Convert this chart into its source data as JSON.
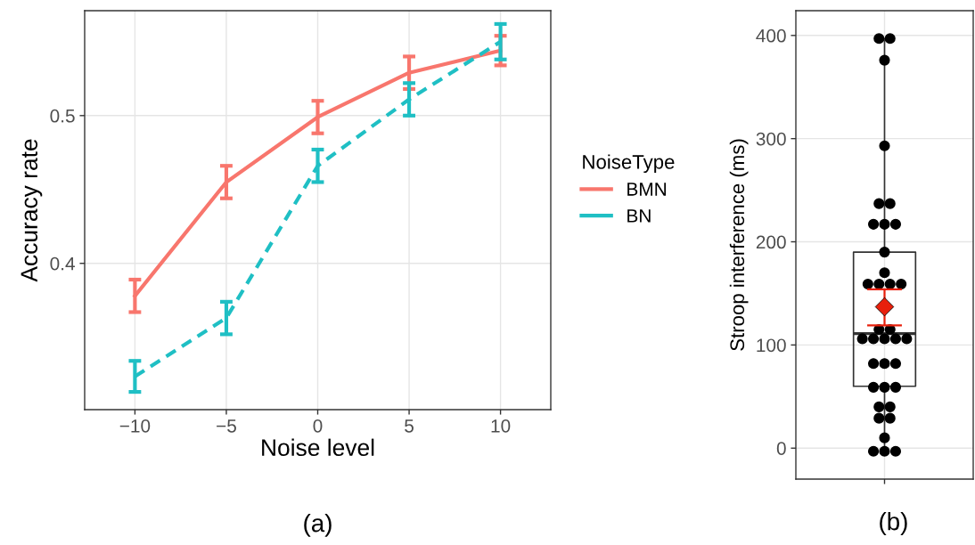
{
  "chart_data": [
    {
      "type": "line",
      "xlabel": "Noise level",
      "ylabel": "Accuracy rate",
      "legend_title": "NoiseType",
      "x": [
        -10,
        -5,
        0,
        5,
        10
      ],
      "series": [
        {
          "name": "BMN",
          "color": "#f8766d",
          "line_style": "solid",
          "values": [
            0.378,
            0.455,
            0.499,
            0.529,
            0.544
          ],
          "errors": [
            0.011,
            0.011,
            0.011,
            0.011,
            0.01
          ]
        },
        {
          "name": "BN",
          "color": "#1fbfc4",
          "line_style": "dashed",
          "values": [
            0.3235,
            0.363,
            0.466,
            0.511,
            0.55
          ],
          "errors": [
            0.0105,
            0.011,
            0.011,
            0.011,
            0.012
          ]
        }
      ],
      "xlim": [
        -12.75,
        12.75
      ],
      "xticks": [
        {
          "value": -10,
          "label": "−10"
        },
        {
          "value": -5,
          "label": "−5"
        },
        0,
        5,
        10
      ],
      "ylim": [
        0.301,
        0.571
      ],
      "yticks": [
        0.4,
        0.5
      ],
      "grid": true,
      "legend": "right",
      "marker": "none",
      "annotations": [
        {
          "text": "(a)"
        }
      ]
    },
    {
      "type": "box",
      "ylabel": "Stroop interference (ms)",
      "categories": [
        null
      ],
      "boxes": [
        {
          "low": -3,
          "q1": 60,
          "median": 111,
          "q3": 190,
          "high": 397
        }
      ],
      "series": [
        {
          "type": "scatter",
          "x": [
            null,
            null,
            null,
            null,
            null,
            null,
            null,
            null,
            null,
            null,
            null,
            null,
            null,
            null,
            null,
            null,
            null,
            null,
            null,
            null,
            null,
            null,
            null,
            null,
            null,
            null,
            null,
            null,
            null,
            null,
            null,
            null,
            null,
            null,
            null,
            null
          ],
          "color": "#000000",
          "marker": "circle",
          "values": [
            397,
            397,
            376,
            293,
            237,
            237,
            217,
            217,
            217,
            190,
            170,
            159,
            159,
            159,
            159,
            115,
            115,
            106,
            106,
            106,
            106,
            106,
            82,
            82,
            82,
            59,
            59,
            59,
            40,
            40,
            29,
            29,
            10,
            -3,
            -3,
            -3
          ]
        },
        {
          "type": "scatter",
          "x": [
            null
          ],
          "color": "#e8200c",
          "marker": "diamond",
          "values": [
            137
          ],
          "errors": [
            [
              119,
              154
            ]
          ]
        }
      ],
      "ylim": [
        -30,
        424
      ],
      "yticks": [
        0,
        100,
        200,
        300,
        400
      ],
      "grid": true,
      "tick_labels": "y",
      "legend": false,
      "annotations": [
        {
          "text": "(b)"
        }
      ]
    }
  ]
}
